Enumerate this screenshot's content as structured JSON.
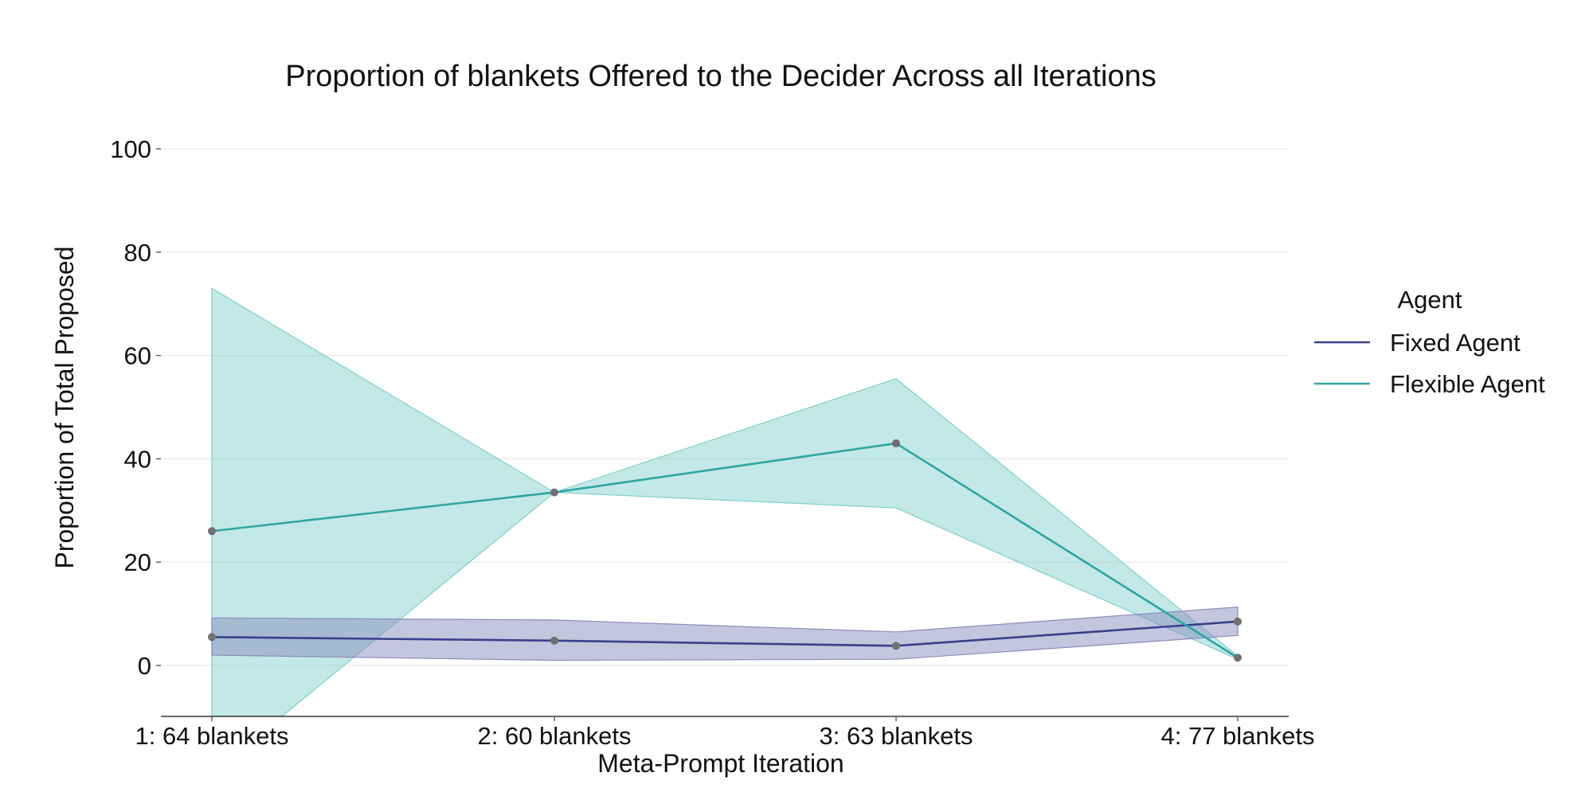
{
  "chart_data": {
    "type": "line",
    "title": "Proportion of blankets Offered to the Decider Across all Iterations",
    "xlabel": "Meta-Prompt Iteration",
    "ylabel": "Proportion of Total Proposed",
    "categories": [
      "1: 64 blankets",
      "2: 60 blankets",
      "3: 63 blankets",
      "4: 77 blankets"
    ],
    "ylim": [
      -10,
      100
    ],
    "yticks": [
      0,
      20,
      40,
      60,
      80,
      100
    ],
    "grid": true,
    "legend": {
      "title": "Agent",
      "placement": "right"
    },
    "series": [
      {
        "name": "Fixed Agent",
        "color": "#3b3f8c",
        "band_color": "#8a8dbd",
        "values": [
          5.5,
          4.8,
          3.8,
          8.5
        ],
        "ci_low": [
          2.0,
          1.0,
          1.2,
          5.8
        ],
        "ci_high": [
          9.2,
          8.8,
          6.5,
          11.3
        ]
      },
      {
        "name": "Flexible Agent",
        "color": "#2ca6a4",
        "band_color": "#7fcfcc",
        "values": [
          26.0,
          33.5,
          43.0,
          1.5
        ],
        "ci_low": [
          -21.0,
          33.5,
          30.5,
          1.2
        ],
        "ci_high": [
          73.0,
          33.5,
          55.5,
          1.8
        ]
      }
    ],
    "marker_color": "#707070"
  }
}
